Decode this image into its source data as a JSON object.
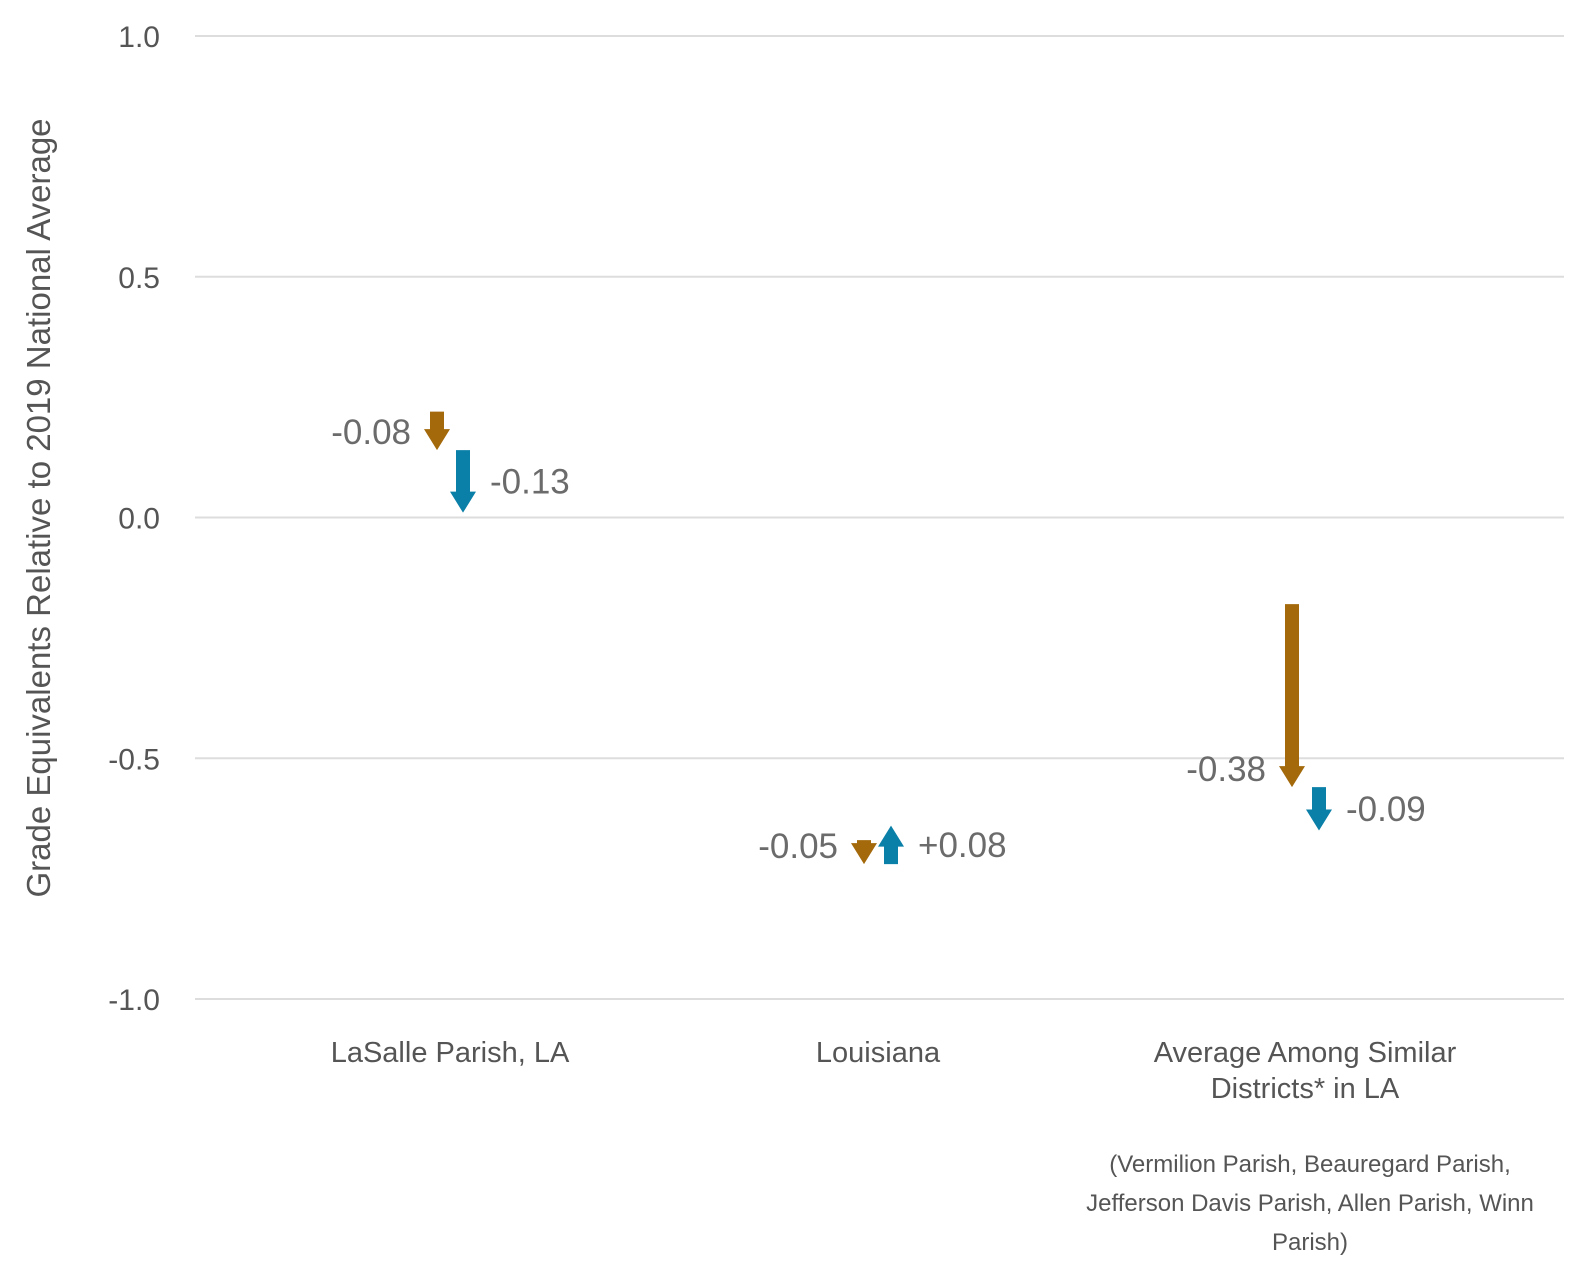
{
  "chart_data": {
    "type": "arrow",
    "ylabel": "Grade Equivalents Relative to 2019 National Average",
    "ylim": [
      -1.0,
      1.0
    ],
    "yticks": [
      {
        "value": 1.0,
        "label": "1.0"
      },
      {
        "value": 0.5,
        "label": "0.5"
      },
      {
        "value": 0.0,
        "label": "0.0"
      },
      {
        "value": -0.5,
        "label": "-0.5"
      },
      {
        "value": -1.0,
        "label": "-1.0"
      }
    ],
    "grid": true,
    "colors": {
      "series_1": "#a3690b",
      "series_2": "#0a7fa8"
    },
    "categories": [
      {
        "lines": [
          "LaSalle Parish, LA"
        ],
        "arrows": [
          {
            "series": "series_1",
            "from": 0.22,
            "to": 0.14,
            "label": "-0.08"
          },
          {
            "series": "series_2",
            "from": 0.14,
            "to": 0.01,
            "label": "-0.13"
          }
        ]
      },
      {
        "lines": [
          "Louisiana"
        ],
        "arrows": [
          {
            "series": "series_1",
            "from": -0.67,
            "to": -0.72,
            "label": "-0.05"
          },
          {
            "series": "series_2",
            "from": -0.72,
            "to": -0.64,
            "label": "+0.08"
          }
        ]
      },
      {
        "lines": [
          "Average Among Similar",
          "Districts* in LA"
        ],
        "note": [
          "(Vermilion Parish, Beauregard Parish,",
          "Jefferson Davis Parish, Allen Parish, Winn",
          "Parish)"
        ],
        "arrows": [
          {
            "series": "series_1",
            "from": -0.18,
            "to": -0.56,
            "label": "-0.38"
          },
          {
            "series": "series_2",
            "from": -0.56,
            "to": -0.65,
            "label": "-0.09"
          }
        ]
      }
    ]
  }
}
